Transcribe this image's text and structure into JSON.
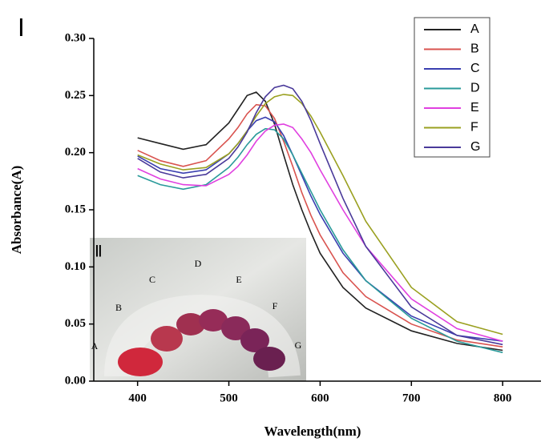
{
  "chart_data": {
    "type": "line",
    "panel_label": "Ⅰ",
    "x_label": "Wavelength(nm)",
    "y_label": "Absorbance(A)",
    "x": [
      400,
      425,
      450,
      475,
      500,
      510,
      520,
      530,
      540,
      550,
      560,
      570,
      580,
      590,
      600,
      625,
      650,
      700,
      750,
      800
    ],
    "series": [
      {
        "name": "A",
        "color": "#222222",
        "values": [
          0.213,
          0.208,
          0.203,
          0.207,
          0.226,
          0.238,
          0.25,
          0.253,
          0.245,
          0.225,
          0.198,
          0.172,
          0.15,
          0.13,
          0.112,
          0.082,
          0.064,
          0.044,
          0.033,
          0.027
        ]
      },
      {
        "name": "B",
        "color": "#d9534f",
        "values": [
          0.202,
          0.193,
          0.188,
          0.193,
          0.212,
          0.222,
          0.234,
          0.242,
          0.241,
          0.23,
          0.21,
          0.188,
          0.165,
          0.145,
          0.128,
          0.095,
          0.074,
          0.05,
          0.036,
          0.03
        ]
      },
      {
        "name": "C",
        "color": "#3a3fb0",
        "values": [
          0.197,
          0.186,
          0.182,
          0.185,
          0.199,
          0.208,
          0.219,
          0.228,
          0.231,
          0.227,
          0.215,
          0.198,
          0.18,
          0.162,
          0.146,
          0.112,
          0.088,
          0.057,
          0.04,
          0.035
        ]
      },
      {
        "name": "D",
        "color": "#2a9a9a",
        "values": [
          0.18,
          0.172,
          0.168,
          0.172,
          0.187,
          0.196,
          0.207,
          0.216,
          0.221,
          0.22,
          0.212,
          0.198,
          0.182,
          0.166,
          0.15,
          0.115,
          0.088,
          0.055,
          0.035,
          0.025
        ]
      },
      {
        "name": "E",
        "color": "#e040e0",
        "values": [
          0.186,
          0.177,
          0.172,
          0.171,
          0.181,
          0.188,
          0.198,
          0.21,
          0.219,
          0.224,
          0.225,
          0.222,
          0.212,
          0.2,
          0.185,
          0.15,
          0.118,
          0.072,
          0.046,
          0.035
        ]
      },
      {
        "name": "F",
        "color": "#9aa020",
        "values": [
          0.198,
          0.19,
          0.185,
          0.187,
          0.199,
          0.208,
          0.219,
          0.232,
          0.243,
          0.249,
          0.251,
          0.25,
          0.243,
          0.232,
          0.218,
          0.18,
          0.14,
          0.082,
          0.052,
          0.041
        ]
      },
      {
        "name": "G",
        "color": "#4a3a9a",
        "values": [
          0.195,
          0.183,
          0.178,
          0.181,
          0.195,
          0.205,
          0.218,
          0.235,
          0.249,
          0.257,
          0.259,
          0.256,
          0.245,
          0.228,
          0.208,
          0.16,
          0.118,
          0.065,
          0.04,
          0.032
        ]
      }
    ],
    "xlim": [
      352,
      842
    ],
    "ylim": [
      0,
      0.3
    ],
    "xticks": [
      400,
      500,
      600,
      700,
      800
    ],
    "yticks": [
      {
        "value": 0,
        "label": "0.00"
      },
      {
        "value": 0.05,
        "label": "0.05"
      },
      {
        "value": 0.1,
        "label": "0.10"
      },
      {
        "value": 0.15,
        "label": "0.15"
      },
      {
        "value": 0.2,
        "label": "0.20"
      },
      {
        "value": 0.25,
        "label": "0.25"
      },
      {
        "value": 0.3,
        "label": "0.30"
      }
    ],
    "legend": "upper right",
    "inset_label": "Ⅱ",
    "inset_tube_labels": [
      "A",
      "B",
      "C",
      "D",
      "E",
      "F",
      "G"
    ]
  }
}
